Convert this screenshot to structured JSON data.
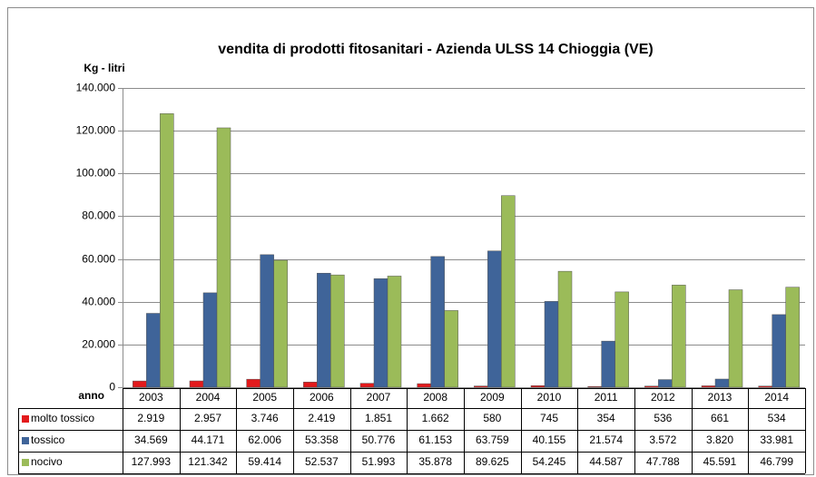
{
  "chart_data": {
    "type": "bar",
    "title": "vendita di prodotti fitosanitari - Azienda ULSS 14 Chioggia (VE)",
    "y_label": "Kg - litri",
    "x_label": "anno",
    "categories": [
      "2003",
      "2004",
      "2005",
      "2006",
      "2007",
      "2008",
      "2009",
      "2010",
      "2011",
      "2012",
      "2013",
      "2014"
    ],
    "series": [
      {
        "name": "molto tossico",
        "color": "#e31a1c",
        "values": [
          2919,
          2957,
          3746,
          2419,
          1851,
          1662,
          580,
          745,
          354,
          536,
          661,
          534
        ],
        "value_labels": [
          "2.919",
          "2.957",
          "3.746",
          "2.419",
          "1.851",
          "1.662",
          "580",
          "745",
          "354",
          "536",
          "661",
          "534"
        ]
      },
      {
        "name": "tossico",
        "color": "#3f6499",
        "values": [
          34569,
          44171,
          62006,
          53358,
          50776,
          61153,
          63759,
          40155,
          21574,
          3572,
          3820,
          33981
        ],
        "value_labels": [
          "34.569",
          "44.171",
          "62.006",
          "53.358",
          "50.776",
          "61.153",
          "63.759",
          "40.155",
          "21.574",
          "3.572",
          "3.820",
          "33.981"
        ]
      },
      {
        "name": "nocivo",
        "color": "#9bbb59",
        "values": [
          127993,
          121342,
          59414,
          52537,
          51993,
          35878,
          89625,
          54245,
          44587,
          47788,
          45591,
          46799
        ],
        "value_labels": [
          "127.993",
          "121.342",
          "59.414",
          "52.537",
          "51.993",
          "35.878",
          "89.625",
          "54.245",
          "44.587",
          "47.788",
          "45.591",
          "46.799"
        ]
      }
    ],
    "ylim": [
      0,
      140000
    ],
    "yticks": [
      0,
      {
        "value": 20000,
        "label": "20.000"
      },
      {
        "value": 40000,
        "label": "40.000"
      },
      {
        "value": 60000,
        "label": "60.000"
      },
      {
        "value": 80000,
        "label": "80.000"
      },
      {
        "value": 100000,
        "label": "100.000"
      },
      {
        "value": 120000,
        "label": "120.000"
      },
      {
        "value": 140000,
        "label": "140.000"
      }
    ],
    "grid": true
  }
}
